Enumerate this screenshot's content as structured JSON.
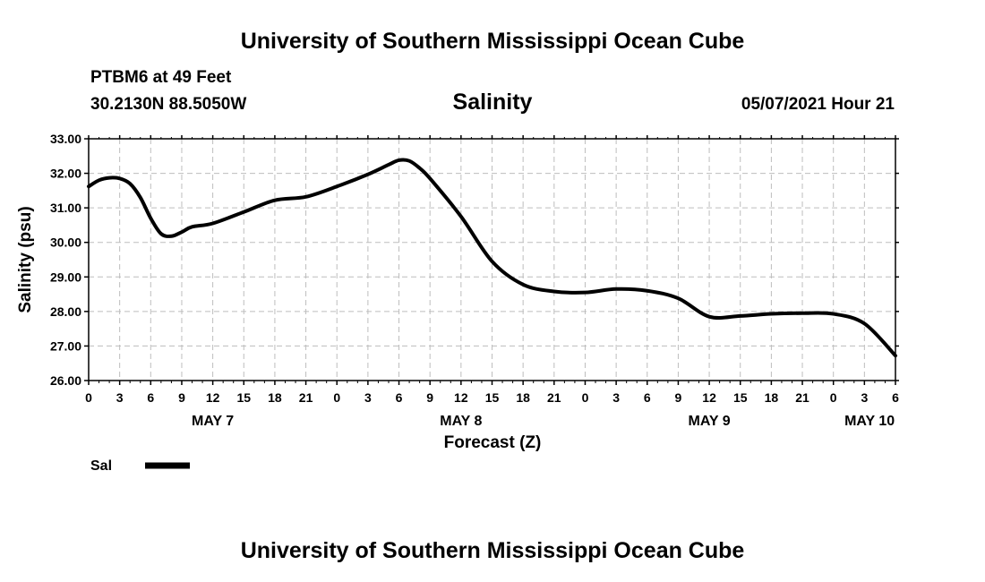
{
  "header": {
    "title_top": "University of Southern Mississippi Ocean Cube",
    "title_bottom": "University of Southern Mississippi Ocean Cube",
    "station": "PTBM6 at 49 Feet",
    "coords": "30.2130N  88.5050W",
    "datetime": "05/07/2021 Hour 21"
  },
  "chart_data": {
    "type": "line",
    "title": "Salinity",
    "xlabel": "Forecast (Z)",
    "ylabel": "Salinity (psu)",
    "ylim": [
      26.0,
      33.0
    ],
    "yticks": [
      "26.00",
      "27.00",
      "28.00",
      "29.00",
      "30.00",
      "31.00",
      "32.00",
      "33.00"
    ],
    "xlim_hours": [
      0,
      78
    ],
    "xtick_labels": [
      "0",
      "3",
      "6",
      "9",
      "12",
      "15",
      "18",
      "21",
      "0",
      "3",
      "6",
      "9",
      "12",
      "15",
      "18",
      "21",
      "0",
      "3",
      "6",
      "9",
      "12",
      "15",
      "18",
      "21",
      "0",
      "3",
      "6"
    ],
    "date_labels": [
      {
        "label": "MAY 7",
        "hour": 12
      },
      {
        "label": "MAY 8",
        "hour": 36
      },
      {
        "label": "MAY 9",
        "hour": 60
      },
      {
        "label": "MAY 10",
        "hour": 75.5
      }
    ],
    "grid": true,
    "legend": [
      {
        "name": "Sal",
        "color": "#000000"
      }
    ],
    "series": [
      {
        "name": "Sal",
        "color": "#000000",
        "x": [
          0,
          1,
          2,
          3,
          4,
          5,
          6,
          7,
          8,
          9,
          10,
          12,
          15,
          18,
          21,
          24,
          27,
          29,
          30,
          31,
          32,
          33,
          36,
          39,
          42,
          45,
          48,
          51,
          54,
          57,
          60,
          63,
          66,
          69,
          72,
          75,
          78
        ],
        "values": [
          31.62,
          31.8,
          31.87,
          31.85,
          31.7,
          31.3,
          30.7,
          30.25,
          30.18,
          30.3,
          30.45,
          30.55,
          30.88,
          31.22,
          31.32,
          31.62,
          31.97,
          32.25,
          32.38,
          32.36,
          32.15,
          31.85,
          30.75,
          29.45,
          28.78,
          28.58,
          28.55,
          28.65,
          28.6,
          28.38,
          27.85,
          27.87,
          27.93,
          27.95,
          27.93,
          27.65,
          26.72
        ]
      }
    ]
  }
}
